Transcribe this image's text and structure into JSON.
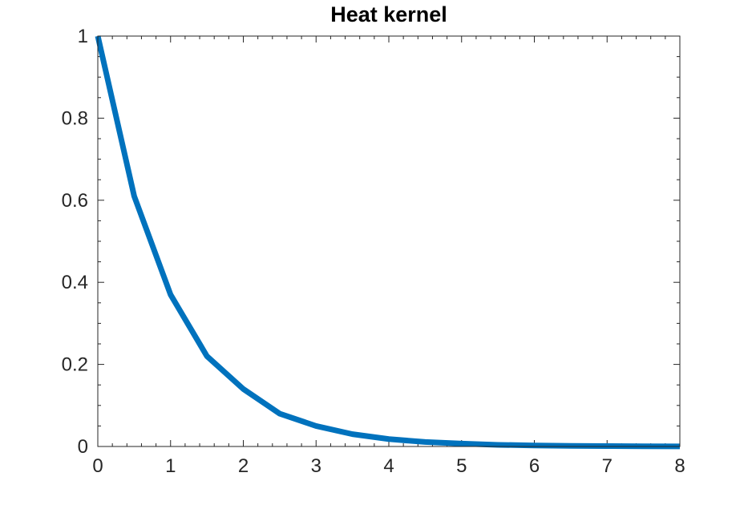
{
  "chart_data": {
    "type": "line",
    "title": "Heat kernel",
    "xlabel": "",
    "ylabel": "",
    "xlim": [
      0,
      8
    ],
    "ylim": [
      0,
      1
    ],
    "xticks": [
      0,
      1,
      2,
      3,
      4,
      5,
      6,
      7,
      8
    ],
    "yticks": [
      0,
      0.2,
      0.4,
      0.6,
      0.8,
      1
    ],
    "xtick_labels": [
      "0",
      "1",
      "2",
      "3",
      "4",
      "5",
      "6",
      "7",
      "8"
    ],
    "ytick_labels": [
      "0",
      "0.2",
      "0.4",
      "0.6",
      "0.8",
      "1"
    ],
    "grid": false,
    "box": true,
    "minor_ticks": true,
    "series": [
      {
        "color": "#0072BD",
        "x": [
          0,
          0.5,
          1,
          1.5,
          2,
          2.5,
          3,
          3.5,
          4,
          4.5,
          5,
          5.5,
          6,
          6.5,
          7,
          7.5,
          8
        ],
        "y": [
          1.0,
          0.61,
          0.37,
          0.22,
          0.14,
          0.08,
          0.05,
          0.03,
          0.018,
          0.011,
          0.007,
          0.004,
          0.0025,
          0.0015,
          0.0009,
          0.0006,
          0.0003
        ]
      }
    ]
  }
}
